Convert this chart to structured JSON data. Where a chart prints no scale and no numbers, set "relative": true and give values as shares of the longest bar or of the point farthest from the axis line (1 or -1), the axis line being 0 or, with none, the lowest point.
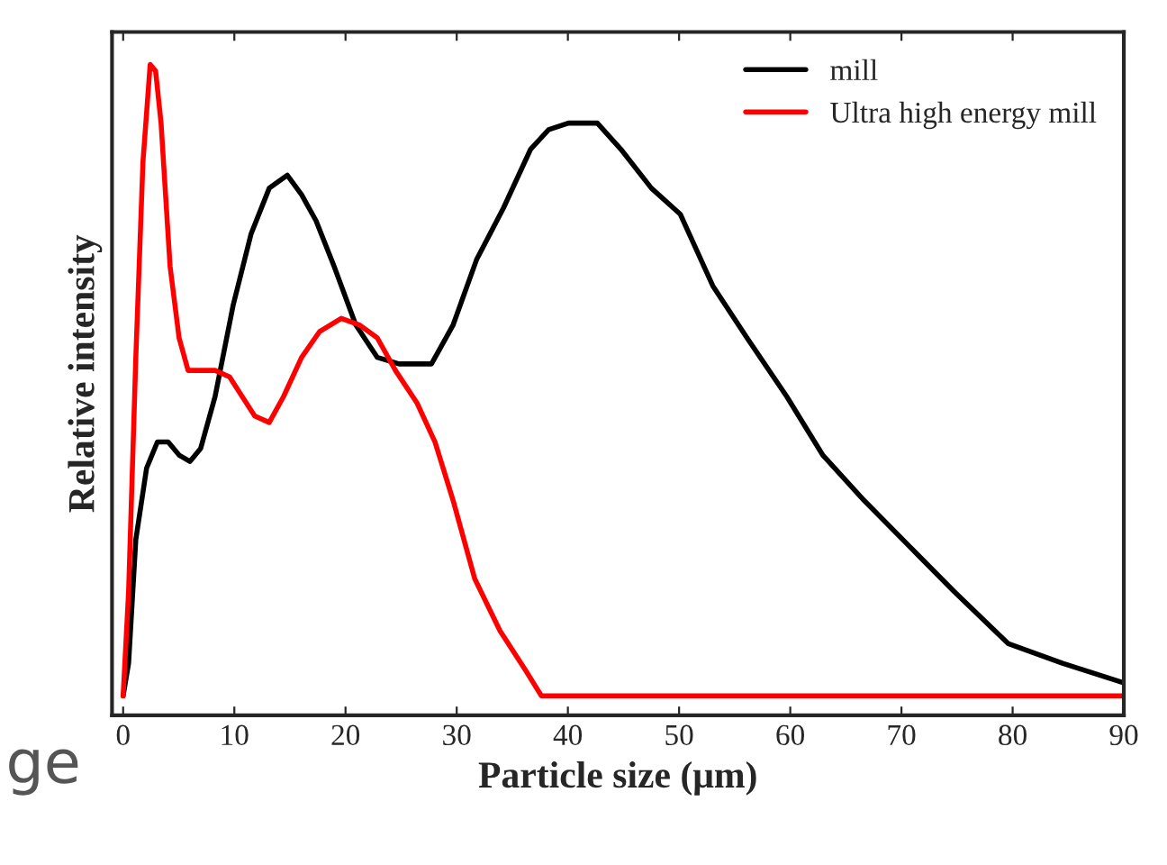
{
  "chart_data": {
    "type": "line",
    "xlabel": "Particle size (μm)",
    "ylabel": "Relative intensity",
    "relative": true,
    "xlim": [
      -1,
      90
    ],
    "xticks": [
      0,
      10,
      20,
      30,
      40,
      50,
      60,
      70,
      80,
      90
    ],
    "legend": "top right",
    "grid": false,
    "annotations": [
      "ge"
    ],
    "series": [
      {
        "name": "mill",
        "color": "#000000",
        "x": [
          0,
          0.49,
          1.14,
          2.11,
          3.08,
          4.05,
          5.03,
          6.0,
          6.97,
          8.27,
          9.89,
          11.51,
          13.14,
          14.76,
          16.05,
          17.35,
          18.97,
          20.92,
          22.86,
          24.81,
          27.73,
          29.68,
          31.78,
          34.22,
          36.65,
          38.27,
          40.05,
          42.65,
          44.76,
          47.51,
          50.11,
          53.03,
          56.11,
          59.68,
          62.92,
          66.65,
          70.7,
          74.76,
          79.62,
          84.49,
          90
        ],
        "values": [
          0.03,
          0.08,
          0.27,
          0.38,
          0.42,
          0.42,
          0.4,
          0.39,
          0.41,
          0.49,
          0.63,
          0.74,
          0.81,
          0.83,
          0.8,
          0.76,
          0.69,
          0.6,
          0.55,
          0.54,
          0.54,
          0.6,
          0.7,
          0.78,
          0.87,
          0.9,
          0.91,
          0.91,
          0.87,
          0.81,
          0.77,
          0.66,
          0.58,
          0.49,
          0.4,
          0.33,
          0.26,
          0.19,
          0.11,
          0.08,
          0.05
        ]
      },
      {
        "name": "Ultra high energy mill",
        "color": "#ff0000",
        "x": [
          0,
          0.49,
          1.14,
          1.78,
          2.43,
          2.92,
          3.41,
          4.22,
          5.03,
          5.84,
          6.97,
          8.27,
          9.57,
          10.7,
          11.84,
          13.14,
          14.43,
          16.05,
          17.68,
          19.62,
          21.24,
          22.86,
          24.49,
          26.43,
          28.05,
          29.68,
          31.62,
          33.89,
          36.16,
          37.62,
          90
        ],
        "values": [
          0.03,
          0.19,
          0.55,
          0.85,
          1.0,
          0.99,
          0.91,
          0.69,
          0.58,
          0.53,
          0.53,
          0.53,
          0.52,
          0.49,
          0.46,
          0.45,
          0.49,
          0.55,
          0.59,
          0.61,
          0.6,
          0.58,
          0.53,
          0.48,
          0.42,
          0.33,
          0.21,
          0.13,
          0.07,
          0.03,
          0.03
        ]
      }
    ]
  }
}
